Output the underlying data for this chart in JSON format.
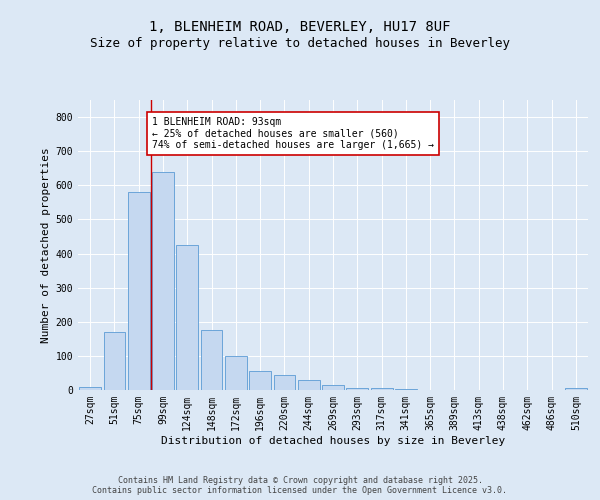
{
  "title1": "1, BLENHEIM ROAD, BEVERLEY, HU17 8UF",
  "title2": "Size of property relative to detached houses in Beverley",
  "xlabel": "Distribution of detached houses by size in Beverley",
  "ylabel": "Number of detached properties",
  "categories": [
    "27sqm",
    "51sqm",
    "75sqm",
    "99sqm",
    "124sqm",
    "148sqm",
    "172sqm",
    "196sqm",
    "220sqm",
    "244sqm",
    "269sqm",
    "293sqm",
    "317sqm",
    "341sqm",
    "365sqm",
    "389sqm",
    "413sqm",
    "438sqm",
    "462sqm",
    "486sqm",
    "510sqm"
  ],
  "values": [
    10,
    170,
    580,
    640,
    425,
    175,
    100,
    55,
    45,
    30,
    15,
    5,
    5,
    4,
    0,
    0,
    0,
    0,
    0,
    0,
    5
  ],
  "bar_color": "#c5d8f0",
  "bar_edge_color": "#5b9bd5",
  "vline_color": "#cc0000",
  "vline_index": 2.5,
  "annotation_text": "1 BLENHEIM ROAD: 93sqm\n← 25% of detached houses are smaller (560)\n74% of semi-detached houses are larger (1,665) →",
  "annotation_box_color": "#ffffff",
  "annotation_edge_color": "#cc0000",
  "ylim": [
    0,
    850
  ],
  "yticks": [
    0,
    100,
    200,
    300,
    400,
    500,
    600,
    700,
    800
  ],
  "background_color": "#dce8f5",
  "grid_color": "#ffffff",
  "footer": "Contains HM Land Registry data © Crown copyright and database right 2025.\nContains public sector information licensed under the Open Government Licence v3.0.",
  "title_fontsize": 10,
  "subtitle_fontsize": 9,
  "axis_label_fontsize": 8,
  "tick_fontsize": 7,
  "annotation_fontsize": 7,
  "footer_fontsize": 6
}
